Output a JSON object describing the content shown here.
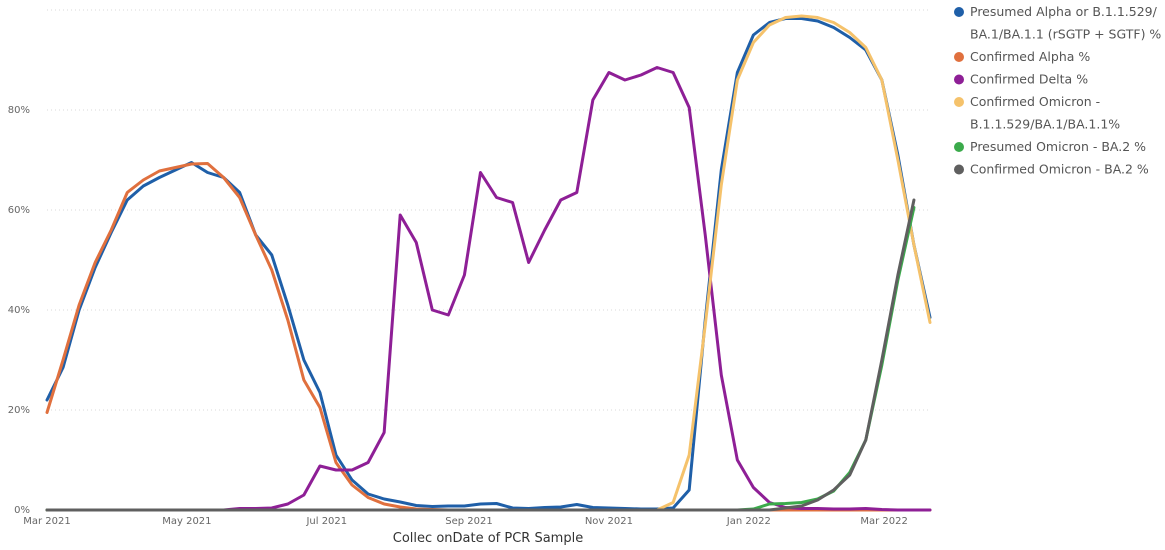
{
  "chart_data": {
    "type": "line",
    "title": "",
    "xlabel": "Collec onDate of PCR Sample",
    "ylabel": "",
    "x_range": [
      "2021-03-01",
      "2022-03-21"
    ],
    "ylim": [
      0,
      100
    ],
    "grid": true,
    "legend_position": "right",
    "x_ticks": [
      {
        "date": "2021-03-01",
        "label": "Mar 2021"
      },
      {
        "date": "2021-05-01",
        "label": "May 2021"
      },
      {
        "date": "2021-07-01",
        "label": "Jul 2021"
      },
      {
        "date": "2021-09-01",
        "label": "Sep 2021"
      },
      {
        "date": "2021-11-01",
        "label": "Nov 2021"
      },
      {
        "date": "2022-01-01",
        "label": "Jan 2022"
      },
      {
        "date": "2022-03-01",
        "label": "Mar 2022"
      }
    ],
    "y_ticks": [
      {
        "value": 0,
        "label": "0%"
      },
      {
        "value": 20,
        "label": "20%"
      },
      {
        "value": 40,
        "label": "40%"
      },
      {
        "value": 60,
        "label": "60%"
      },
      {
        "value": 80,
        "label": "80%"
      }
    ],
    "series": [
      {
        "name": "Presumed Alpha or B.1.1.529/ BA.1/BA.1.1 (rSGTP + SGTF) %",
        "color": "#1F5FA8",
        "points": [
          [
            "2021-03-01",
            22
          ],
          [
            "2021-03-08",
            28.5
          ],
          [
            "2021-03-15",
            40
          ],
          [
            "2021-03-22",
            48.5
          ],
          [
            "2021-03-29",
            55.5
          ],
          [
            "2021-04-05",
            62
          ],
          [
            "2021-04-12",
            64.8
          ],
          [
            "2021-04-19",
            66.5
          ],
          [
            "2021-04-26",
            68
          ],
          [
            "2021-05-03",
            69.5
          ],
          [
            "2021-05-10",
            67.5
          ],
          [
            "2021-05-17",
            66.5
          ],
          [
            "2021-05-24",
            63.5
          ],
          [
            "2021-05-31",
            55
          ],
          [
            "2021-06-07",
            51
          ],
          [
            "2021-06-14",
            41
          ],
          [
            "2021-06-21",
            30
          ],
          [
            "2021-06-28",
            23.5
          ],
          [
            "2021-07-05",
            11
          ],
          [
            "2021-07-12",
            6
          ],
          [
            "2021-07-19",
            3.2
          ],
          [
            "2021-07-26",
            2.2
          ],
          [
            "2021-08-02",
            1.6
          ],
          [
            "2021-08-09",
            0.9
          ],
          [
            "2021-08-16",
            0.7
          ],
          [
            "2021-08-23",
            0.8
          ],
          [
            "2021-08-30",
            0.8
          ],
          [
            "2021-09-06",
            1.2
          ],
          [
            "2021-09-13",
            1.3
          ],
          [
            "2021-09-20",
            0.4
          ],
          [
            "2021-09-27",
            0.3
          ],
          [
            "2021-10-04",
            0.5
          ],
          [
            "2021-10-11",
            0.6
          ],
          [
            "2021-10-18",
            1.1
          ],
          [
            "2021-10-25",
            0.5
          ],
          [
            "2021-11-01",
            0.4
          ],
          [
            "2021-11-08",
            0.3
          ],
          [
            "2021-11-15",
            0.2
          ],
          [
            "2021-11-22",
            0.2
          ],
          [
            "2021-11-29",
            0.4
          ],
          [
            "2021-12-06",
            4
          ],
          [
            "2021-12-13",
            38
          ],
          [
            "2021-12-20",
            68
          ],
          [
            "2021-12-27",
            87.5
          ],
          [
            "2022-01-03",
            95
          ],
          [
            "2022-01-10",
            97.5
          ],
          [
            "2022-01-17",
            98.3
          ],
          [
            "2022-01-24",
            98.3
          ],
          [
            "2022-01-31",
            97.8
          ],
          [
            "2022-02-07",
            96.5
          ],
          [
            "2022-02-14",
            94.5
          ],
          [
            "2022-02-21",
            92
          ],
          [
            "2022-02-28",
            86
          ],
          [
            "2022-03-07",
            71
          ],
          [
            "2022-03-14",
            53
          ],
          [
            "2022-03-21",
            38.5
          ]
        ]
      },
      {
        "name": "Confirmed Alpha %",
        "color": "#E0703E",
        "points": [
          [
            "2021-03-01",
            19.5
          ],
          [
            "2021-03-08",
            30
          ],
          [
            "2021-03-15",
            41
          ],
          [
            "2021-03-22",
            49.5
          ],
          [
            "2021-03-29",
            56
          ],
          [
            "2021-04-05",
            63.5
          ],
          [
            "2021-04-12",
            66
          ],
          [
            "2021-04-19",
            67.8
          ],
          [
            "2021-04-26",
            68.5
          ],
          [
            "2021-05-03",
            69.2
          ],
          [
            "2021-05-10",
            69.3
          ],
          [
            "2021-05-17",
            66.5
          ],
          [
            "2021-05-24",
            62.5
          ],
          [
            "2021-05-31",
            55
          ],
          [
            "2021-06-07",
            48
          ],
          [
            "2021-06-14",
            38
          ],
          [
            "2021-06-21",
            26
          ],
          [
            "2021-06-28",
            20.5
          ],
          [
            "2021-07-05",
            9.5
          ],
          [
            "2021-07-12",
            5
          ],
          [
            "2021-07-19",
            2.5
          ],
          [
            "2021-07-26",
            1.2
          ],
          [
            "2021-08-02",
            0.6
          ],
          [
            "2021-08-09",
            0.2
          ],
          [
            "2021-08-16",
            0.1
          ],
          [
            "2021-08-23",
            0
          ],
          [
            "2021-09-06",
            0
          ],
          [
            "2022-03-21",
            0
          ]
        ]
      },
      {
        "name": "Confirmed Delta %",
        "color": "#8E1F96",
        "points": [
          [
            "2021-03-01",
            0
          ],
          [
            "2021-05-17",
            0
          ],
          [
            "2021-05-24",
            0.3
          ],
          [
            "2021-05-31",
            0.3
          ],
          [
            "2021-06-07",
            0.4
          ],
          [
            "2021-06-14",
            1.2
          ],
          [
            "2021-06-21",
            3
          ],
          [
            "2021-06-28",
            8.8
          ],
          [
            "2021-07-05",
            8
          ],
          [
            "2021-07-12",
            8
          ],
          [
            "2021-07-19",
            9.5
          ],
          [
            "2021-07-26",
            15.5
          ],
          [
            "2021-08-02",
            59
          ],
          [
            "2021-08-09",
            53.5
          ],
          [
            "2021-08-16",
            40
          ],
          [
            "2021-08-23",
            39
          ],
          [
            "2021-08-30",
            47
          ],
          [
            "2021-09-06",
            67.5
          ],
          [
            "2021-09-13",
            62.5
          ],
          [
            "2021-09-20",
            61.5
          ],
          [
            "2021-09-27",
            49.5
          ],
          [
            "2021-10-04",
            56
          ],
          [
            "2021-10-11",
            62
          ],
          [
            "2021-10-18",
            63.5
          ],
          [
            "2021-10-25",
            82
          ],
          [
            "2021-11-01",
            87.5
          ],
          [
            "2021-11-08",
            86
          ],
          [
            "2021-11-15",
            87
          ],
          [
            "2021-11-22",
            88.5
          ],
          [
            "2021-11-29",
            87.5
          ],
          [
            "2021-12-06",
            80.5
          ],
          [
            "2021-12-13",
            55
          ],
          [
            "2021-12-20",
            27
          ],
          [
            "2021-12-27",
            10
          ],
          [
            "2022-01-03",
            4.5
          ],
          [
            "2022-01-10",
            1.5
          ],
          [
            "2022-01-17",
            0.5
          ],
          [
            "2022-01-24",
            0.3
          ],
          [
            "2022-01-31",
            0.3
          ],
          [
            "2022-02-07",
            0.2
          ],
          [
            "2022-02-14",
            0.2
          ],
          [
            "2022-02-21",
            0.3
          ],
          [
            "2022-02-28",
            0.1
          ],
          [
            "2022-03-07",
            0
          ],
          [
            "2022-03-21",
            0
          ]
        ]
      },
      {
        "name": "Confirmed Omicron - B.1.1.529/BA.1/BA.1.1%",
        "color": "#F5C26B",
        "points": [
          [
            "2021-03-01",
            0
          ],
          [
            "2021-11-22",
            0
          ],
          [
            "2021-11-29",
            1.5
          ],
          [
            "2021-12-06",
            11
          ],
          [
            "2021-12-13",
            37
          ],
          [
            "2021-12-20",
            65
          ],
          [
            "2021-12-27",
            86
          ],
          [
            "2022-01-03",
            93.5
          ],
          [
            "2022-01-10",
            97
          ],
          [
            "2022-01-17",
            98.5
          ],
          [
            "2022-01-24",
            98.8
          ],
          [
            "2022-01-31",
            98.5
          ],
          [
            "2022-02-07",
            97.5
          ],
          [
            "2022-02-14",
            95.5
          ],
          [
            "2022-02-21",
            92.5
          ],
          [
            "2022-02-28",
            86
          ],
          [
            "2022-03-07",
            70
          ],
          [
            "2022-03-14",
            53
          ],
          [
            "2022-03-21",
            37.5
          ]
        ]
      },
      {
        "name": "Presumed Omicron - BA.2 %",
        "color": "#3BAA4B",
        "points": [
          [
            "2021-03-01",
            0
          ],
          [
            "2021-12-27",
            0
          ],
          [
            "2022-01-03",
            0.2
          ],
          [
            "2022-01-10",
            1.2
          ],
          [
            "2022-01-17",
            1.3
          ],
          [
            "2022-01-24",
            1.5
          ],
          [
            "2022-01-31",
            2.2
          ],
          [
            "2022-02-07",
            3.8
          ],
          [
            "2022-02-14",
            7.5
          ],
          [
            "2022-02-21",
            14
          ],
          [
            "2022-02-28",
            29
          ],
          [
            "2022-03-07",
            46
          ],
          [
            "2022-03-14",
            60.5
          ]
        ]
      },
      {
        "name": "Confirmed Omicron - BA.2 %",
        "color": "#5F5F5F",
        "points": [
          [
            "2021-03-01",
            0
          ],
          [
            "2022-01-10",
            0
          ],
          [
            "2022-01-17",
            0.4
          ],
          [
            "2022-01-24",
            0.8
          ],
          [
            "2022-01-31",
            2
          ],
          [
            "2022-02-07",
            4
          ],
          [
            "2022-02-14",
            7
          ],
          [
            "2022-02-21",
            14
          ],
          [
            "2022-02-28",
            30
          ],
          [
            "2022-03-07",
            47
          ],
          [
            "2022-03-14",
            62
          ]
        ]
      }
    ]
  }
}
